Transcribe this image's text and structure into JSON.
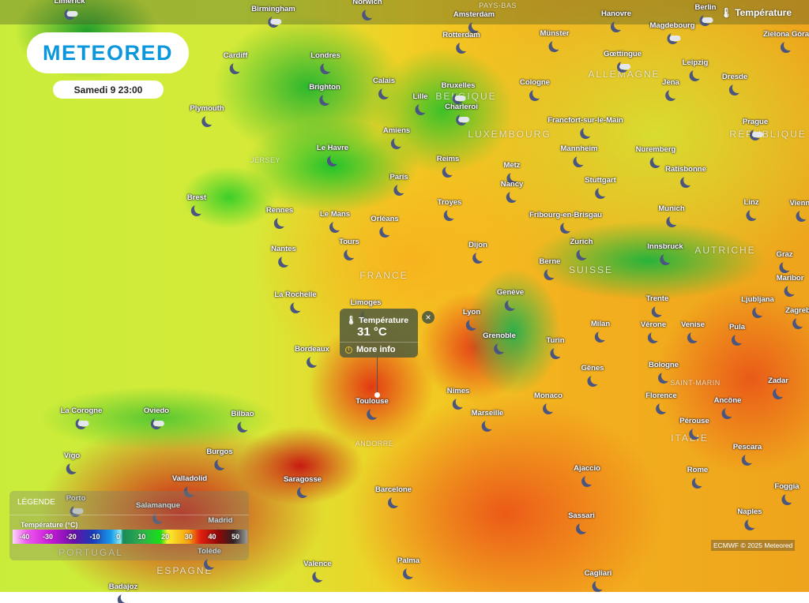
{
  "brand": {
    "logo_text": "METEORED"
  },
  "datetime": "Samedi 9 23:00",
  "layer_label": "Température",
  "popup": {
    "title": "Température",
    "value": "31 °C",
    "more_info": "More info",
    "close": "×",
    "location": "Toulouse"
  },
  "legend": {
    "title": "LÉGENDE",
    "subtitle": "Température (°C)",
    "ticks": [
      "-40",
      "-30",
      "-20",
      "-10",
      "0",
      "10",
      "20",
      "30",
      "40",
      "50"
    ]
  },
  "attribution": "ECMWF © 2025 Meteored",
  "countries": [
    "BELGIQUE",
    "ALLEMAGNE",
    "LUXEMBOURG",
    "RÉPUBLIQUE TCH",
    "FRANCE",
    "SUISSE",
    "AUTRICHE",
    "ITALIE",
    "PORTUGAL",
    "ESPAGNE",
    "JERSEY",
    "PAYS-BAS",
    "ANDORRE",
    "SAINT-MARIN"
  ],
  "cities": [
    {
      "name": "Limerick",
      "icon": "cloud-moon"
    },
    {
      "name": "Birmingham",
      "icon": "cloud-moon"
    },
    {
      "name": "Norwich",
      "icon": "moon"
    },
    {
      "name": "Amsterdam",
      "icon": "moon"
    },
    {
      "name": "Hanovre",
      "icon": "moon"
    },
    {
      "name": "Magdebourg",
      "icon": "cloud-moon"
    },
    {
      "name": "Berlin",
      "icon": "cloud-moon"
    },
    {
      "name": "Cardiff",
      "icon": "moon"
    },
    {
      "name": "Londres",
      "icon": "moon"
    },
    {
      "name": "Rotterdam",
      "icon": "moon"
    },
    {
      "name": "Münster",
      "icon": "moon"
    },
    {
      "name": "Zielona Góra",
      "icon": "moon"
    },
    {
      "name": "Gœttingue",
      "icon": "cloud-moon"
    },
    {
      "name": "Leipzig",
      "icon": "moon"
    },
    {
      "name": "Brighton",
      "icon": "moon"
    },
    {
      "name": "Calais",
      "icon": "moon"
    },
    {
      "name": "Lille",
      "icon": "moon"
    },
    {
      "name": "Bruxelles",
      "icon": "cloud-moon"
    },
    {
      "name": "Charleroi",
      "icon": "cloud-moon"
    },
    {
      "name": "Cologne",
      "icon": "moon"
    },
    {
      "name": "Jena",
      "icon": "moon"
    },
    {
      "name": "Dresde",
      "icon": "moon"
    },
    {
      "name": "Plymouth",
      "icon": "moon"
    },
    {
      "name": "Francfort-sur-le-Main",
      "icon": "moon"
    },
    {
      "name": "Prague",
      "icon": "cloud-moon"
    },
    {
      "name": "Amiens",
      "icon": "moon"
    },
    {
      "name": "Le Havre",
      "icon": "moon"
    },
    {
      "name": "Mannheim",
      "icon": "moon"
    },
    {
      "name": "Nuremberg",
      "icon": "moon"
    },
    {
      "name": "Reims",
      "icon": "moon"
    },
    {
      "name": "Metz",
      "icon": "moon"
    },
    {
      "name": "Stuttgart",
      "icon": "moon"
    },
    {
      "name": "Ratisbonne",
      "icon": "moon"
    },
    {
      "name": "Brest",
      "icon": "moon"
    },
    {
      "name": "Paris",
      "icon": "moon"
    },
    {
      "name": "Nancy",
      "icon": "moon"
    },
    {
      "name": "Rennes",
      "icon": "moon"
    },
    {
      "name": "Le Mans",
      "icon": "moon"
    },
    {
      "name": "Orléans",
      "icon": "moon"
    },
    {
      "name": "Troyes",
      "icon": "moon"
    },
    {
      "name": "Fribourg-en-Brisgau",
      "icon": "moon"
    },
    {
      "name": "Munich",
      "icon": "moon"
    },
    {
      "name": "Linz",
      "icon": "moon"
    },
    {
      "name": "Vienne",
      "icon": "moon"
    },
    {
      "name": "Tours",
      "icon": "moon"
    },
    {
      "name": "Dijon",
      "icon": "moon"
    },
    {
      "name": "Zurich",
      "icon": "moon"
    },
    {
      "name": "Berne",
      "icon": "moon"
    },
    {
      "name": "Innsbruck",
      "icon": "moon"
    },
    {
      "name": "Graz",
      "icon": "moon"
    },
    {
      "name": "Nantes",
      "icon": "moon"
    },
    {
      "name": "La Rochelle",
      "icon": "moon"
    },
    {
      "name": "Genève",
      "icon": "moon"
    },
    {
      "name": "Trente",
      "icon": "moon"
    },
    {
      "name": "Ljubljana",
      "icon": "moon"
    },
    {
      "name": "Maribor",
      "icon": "moon"
    },
    {
      "name": "Zagreb",
      "icon": "moon"
    },
    {
      "name": "Lyon",
      "icon": "moon"
    },
    {
      "name": "Limoges",
      "icon": "moon"
    },
    {
      "name": "Grenoble",
      "icon": "moon"
    },
    {
      "name": "Milan",
      "icon": "moon"
    },
    {
      "name": "Vérone",
      "icon": "moon"
    },
    {
      "name": "Venise",
      "icon": "moon"
    },
    {
      "name": "Pula",
      "icon": "moon"
    },
    {
      "name": "Bordeaux",
      "icon": "moon"
    },
    {
      "name": "Turin",
      "icon": "moon"
    },
    {
      "name": "Gênes",
      "icon": "moon"
    },
    {
      "name": "Bologne",
      "icon": "moon"
    },
    {
      "name": "Zadar",
      "icon": "moon"
    },
    {
      "name": "Nimes",
      "icon": "moon"
    },
    {
      "name": "Monaco",
      "icon": "moon"
    },
    {
      "name": "Marseille",
      "icon": "moon"
    },
    {
      "name": "Florence",
      "icon": "moon"
    },
    {
      "name": "Ancône",
      "icon": "moon"
    },
    {
      "name": "Toulouse",
      "icon": "moon"
    },
    {
      "name": "La Corogne",
      "icon": "cloud-moon"
    },
    {
      "name": "Oviedo",
      "icon": "cloud-moon"
    },
    {
      "name": "Bilbao",
      "icon": "moon"
    },
    {
      "name": "Pérouse",
      "icon": "moon"
    },
    {
      "name": "Burgos",
      "icon": "moon"
    },
    {
      "name": "Vigo",
      "icon": "moon"
    },
    {
      "name": "Pescara",
      "icon": "moon"
    },
    {
      "name": "Saragosse",
      "icon": "moon"
    },
    {
      "name": "Valladolid",
      "icon": "moon"
    },
    {
      "name": "Ajaccio",
      "icon": "moon"
    },
    {
      "name": "Rome",
      "icon": "moon"
    },
    {
      "name": "Barcelone",
      "icon": "moon"
    },
    {
      "name": "Porto",
      "icon": "cloud-moon"
    },
    {
      "name": "Foggia",
      "icon": "moon"
    },
    {
      "name": "Salamanque",
      "icon": "moon"
    },
    {
      "name": "Sassari",
      "icon": "moon"
    },
    {
      "name": "Naples",
      "icon": "moon"
    },
    {
      "name": "Madrid",
      "icon": "moon"
    },
    {
      "name": "Tolède",
      "icon": "moon"
    },
    {
      "name": "Palma",
      "icon": "moon"
    },
    {
      "name": "Valence",
      "icon": "moon"
    },
    {
      "name": "Cagliari",
      "icon": "moon"
    },
    {
      "name": "Badajoz",
      "icon": "moon"
    }
  ]
}
